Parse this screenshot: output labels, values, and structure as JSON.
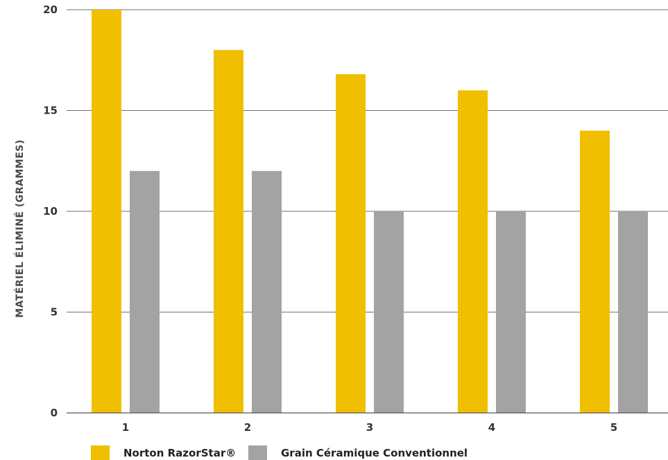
{
  "chart_data": {
    "type": "bar",
    "title": "",
    "xlabel": "",
    "ylabel": "MATÉRIEL ÉLIMINÉ (GRAMMES)",
    "categories": [
      "1",
      "2",
      "3",
      "4",
      "5"
    ],
    "series": [
      {
        "name": "Norton RazorStar®",
        "color": "#f0bf00",
        "values": [
          20,
          18,
          16.8,
          16,
          14
        ]
      },
      {
        "name": "Grain Céramique Conventionnel",
        "color": "#a3a3a3",
        "values": [
          12,
          12,
          10,
          10,
          10
        ]
      }
    ],
    "ylim": [
      0,
      20
    ],
    "yticks": [
      "0",
      "5",
      "10",
      "15",
      "20"
    ],
    "grid": true,
    "legend_position": "bottom-left"
  }
}
